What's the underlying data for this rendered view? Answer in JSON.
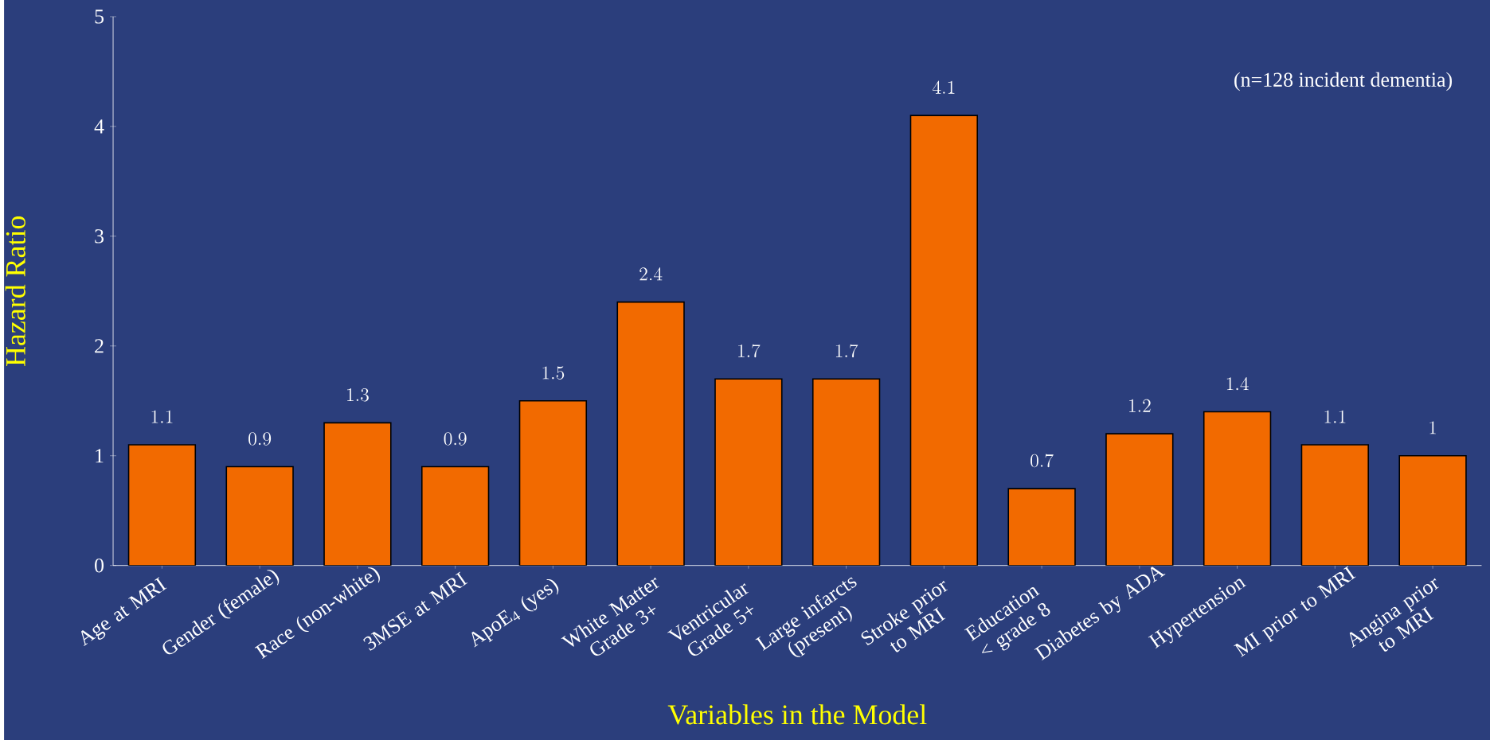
{
  "chart_data": {
    "type": "bar",
    "xlabel": "Variables in the Model",
    "ylabel": "Hazard Ratio",
    "categories": [
      "Age at MRI",
      "Gender (female)",
      "Race (non-white)",
      "3MSE at MRI",
      "ApoE$_{4}$ (yes)",
      "White Matter Grade 3+",
      "Ventricular Grade 5+",
      "Large infarcts (present)",
      "Stroke prior to MRI",
      "Education < grade 8",
      "Diabetes by ADA",
      "Hypertension",
      "MI prior to MRI",
      "Angina prior to MRI"
    ],
    "values": [
      1.1,
      0.9,
      1.3,
      0.9,
      1.5,
      2.4,
      1.7,
      1.7,
      4.1,
      0.7,
      1.2,
      1.4,
      1.1,
      1
    ],
    "color": "#f26a00",
    "data_labels": true,
    "ylim": [
      0,
      5
    ],
    "yticks": [
      0,
      1,
      2,
      3,
      4,
      5
    ],
    "grid": false,
    "annotations": [
      "(n=128 incident dementia)"
    ]
  }
}
